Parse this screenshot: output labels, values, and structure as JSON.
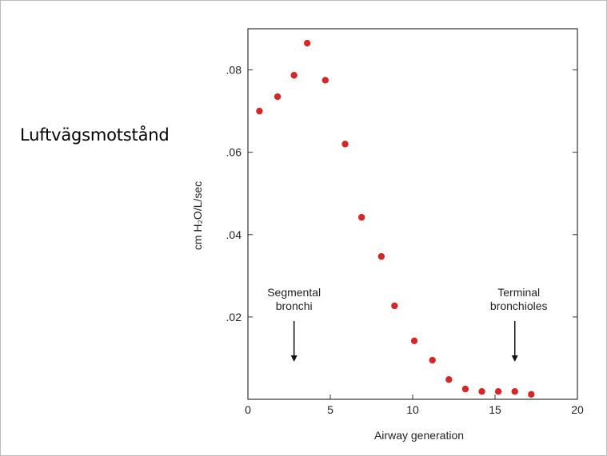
{
  "slide": {
    "title": "Luftvägsmotstånd"
  },
  "chart_data": {
    "type": "scatter",
    "title": "",
    "xlabel": "Airway generation",
    "ylabel": "cm H₂O/L/sec",
    "xlim": [
      0,
      20
    ],
    "ylim": [
      0,
      0.09
    ],
    "x_ticks": [
      0,
      5,
      10,
      15,
      20
    ],
    "x_tick_labels": [
      "0",
      "5",
      "10",
      "15",
      "20"
    ],
    "y_ticks": [
      0.02,
      0.04,
      0.06,
      0.08
    ],
    "y_tick_labels": [
      ".02",
      ".04",
      ".06",
      ".08"
    ],
    "grid": false,
    "point_color": "#d62728",
    "series": [
      {
        "x": [
          0.7,
          1.8,
          2.8,
          3.6,
          4.7,
          5.9,
          6.9,
          8.1,
          8.9,
          10.1,
          11.2,
          12.2,
          13.2,
          14.2,
          15.2,
          16.2,
          17.2
        ],
        "y": [
          0.07,
          0.0735,
          0.0787,
          0.0865,
          0.0775,
          0.062,
          0.0442,
          0.0347,
          0.0227,
          0.0142,
          0.0095,
          0.0048,
          0.0025,
          0.0019,
          0.0019,
          0.0019,
          0.0012
        ]
      }
    ],
    "annotations": [
      {
        "lines": [
          "Segmental",
          "bronchi"
        ],
        "arrow_at_x": 2.8
      },
      {
        "lines": [
          "Terminal",
          "bronchioles"
        ],
        "arrow_at_x": 16.2
      }
    ]
  }
}
